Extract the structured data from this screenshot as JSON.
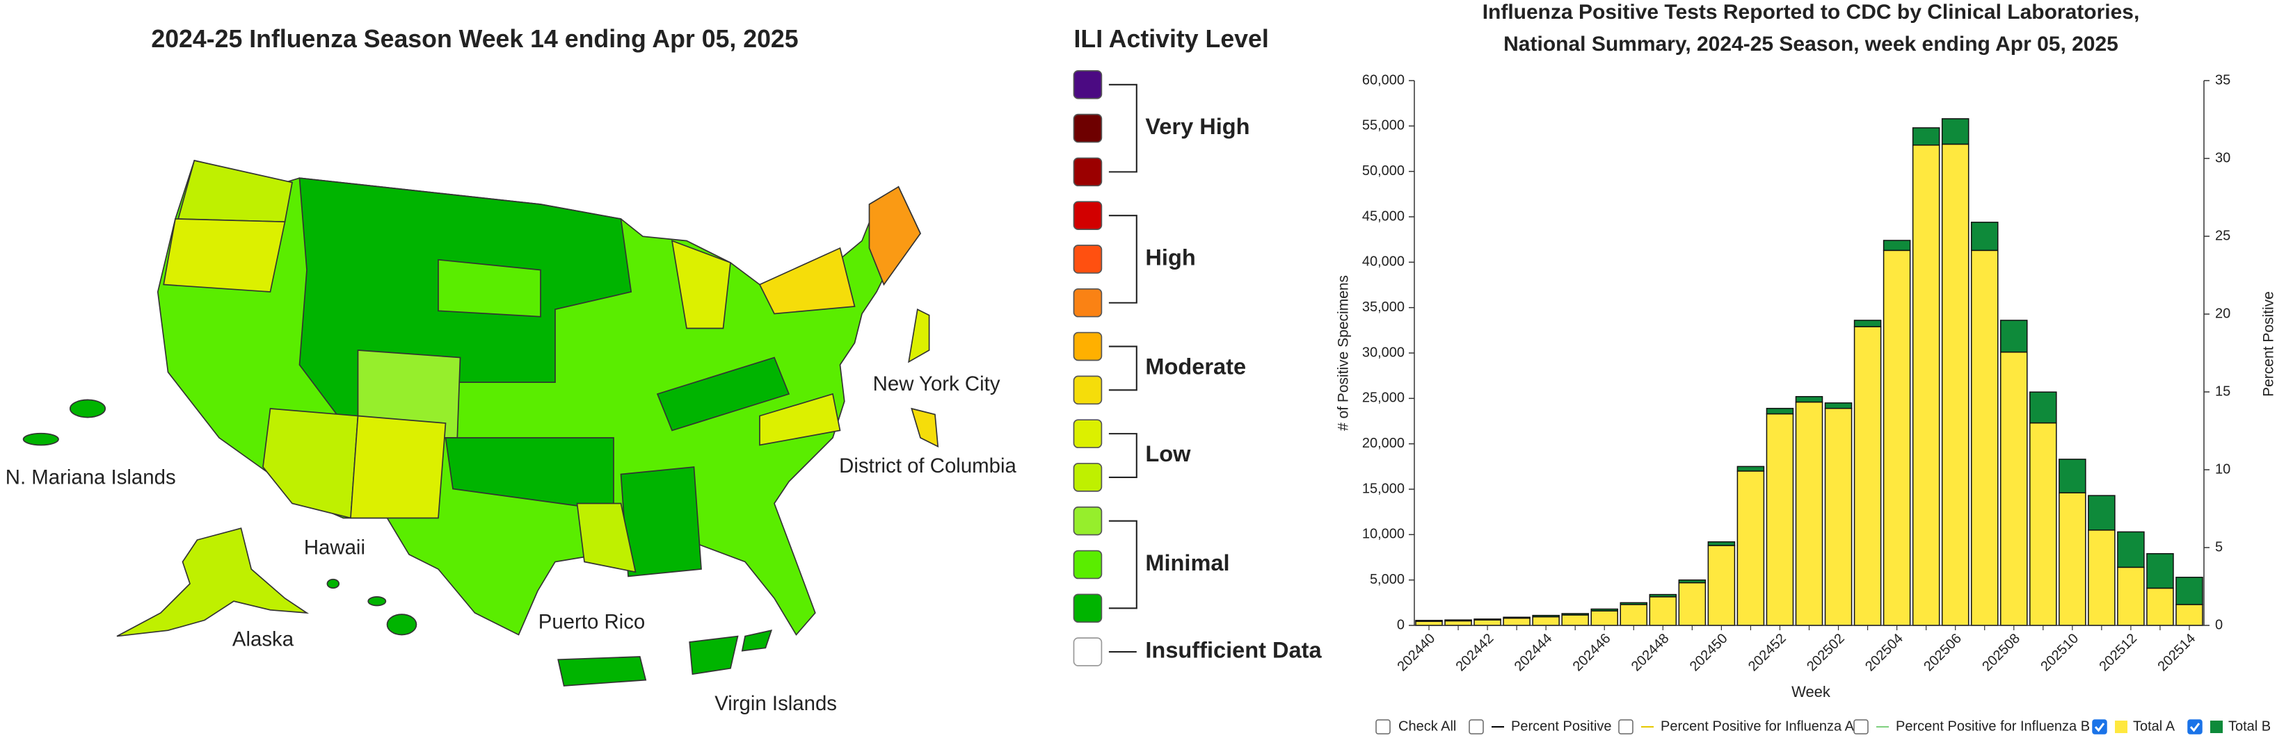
{
  "map": {
    "title": "2024-25 Influenza Season Week 14 ending Apr 05, 2025",
    "labels": [
      "N. Mariana Islands",
      "Hawaii",
      "Alaska",
      "Puerto Rico",
      "Virgin Islands",
      "New York City",
      "District of Columbia"
    ]
  },
  "ili_legend": {
    "title": "ILI Activity Level",
    "groups": [
      {
        "label": "Very High",
        "colors": [
          "#4b0a82",
          "#6e0000",
          "#9b0000"
        ]
      },
      {
        "label": "High",
        "colors": [
          "#d20000",
          "#ff5010",
          "#fa8214"
        ]
      },
      {
        "label": "Moderate",
        "colors": [
          "#ffb000",
          "#f5dd0a"
        ]
      },
      {
        "label": "Low",
        "colors": [
          "#dcf000",
          "#bff000"
        ]
      },
      {
        "label": "Minimal",
        "colors": [
          "#96ee2c",
          "#5aed00",
          "#00b400"
        ]
      },
      {
        "label": "Insufficient Data",
        "colors": [
          "#ffffff"
        ]
      }
    ]
  },
  "chart_data": {
    "type": "stacked_bar",
    "title": "Influenza Positive Tests Reported to CDC by Clinical Laboratories,",
    "subtitle": "National Summary, 2024-25 Season, week ending Apr 05, 2025",
    "x_label": "Week",
    "y_label": "# of Positive Specimens",
    "y2_label": "Percent Positive",
    "categories": [
      "202440",
      null,
      "202442",
      null,
      "202444",
      null,
      "202446",
      null,
      "202448",
      null,
      "202450",
      null,
      "202452",
      null,
      "202502",
      null,
      "202504",
      null,
      "202506",
      null,
      "202508",
      null,
      "202510",
      null,
      "202512",
      null,
      "202514"
    ],
    "series": [
      {
        "name": "Total A",
        "color": "#ffe83f",
        "checked": true,
        "values": [
          450,
          500,
          600,
          800,
          950,
          1150,
          1600,
          2300,
          3150,
          4700,
          8800,
          17000,
          23300,
          24600,
          23900,
          32900,
          41300,
          52900,
          53000,
          41300,
          30100,
          22300,
          14600,
          10500,
          6400,
          4100,
          2300
        ]
      },
      {
        "name": "Total B",
        "color": "#0e8a3a",
        "checked": true,
        "values": [
          100,
          100,
          100,
          100,
          150,
          150,
          200,
          200,
          250,
          300,
          400,
          500,
          600,
          600,
          600,
          700,
          1100,
          1900,
          2800,
          3100,
          3500,
          3400,
          3700,
          3800,
          3900,
          3800,
          3000
        ]
      }
    ],
    "controls": [
      {
        "label": "Check All",
        "checked": false
      },
      {
        "label": "Percent Positive",
        "checked": false,
        "color": "#000000"
      },
      {
        "label": "Percent Positive for Influenza A",
        "checked": false,
        "color": "#e6c800"
      },
      {
        "label": "Percent Positive for Influenza B",
        "checked": false,
        "color": "#7fd07f"
      }
    ],
    "ylim": [
      0,
      60000
    ],
    "yticks": [
      0,
      {
        "value": 5000,
        "label": "5,000"
      },
      {
        "value": 10000,
        "label": "10,000"
      },
      {
        "value": 15000,
        "label": "15,000"
      },
      {
        "value": 20000,
        "label": "20,000"
      },
      {
        "value": 25000,
        "label": "25,000"
      },
      {
        "value": 30000,
        "label": "30,000"
      },
      {
        "value": 35000,
        "label": "35,000"
      },
      {
        "value": 40000,
        "label": "40,000"
      },
      {
        "value": 45000,
        "label": "45,000"
      },
      {
        "value": 50000,
        "label": "50,000"
      },
      {
        "value": 55000,
        "label": "55,000"
      },
      {
        "value": 60000,
        "label": "60,000"
      }
    ],
    "y2lim": [
      0,
      35
    ],
    "y2ticks": [
      0,
      5,
      10,
      15,
      20,
      25,
      30,
      35
    ]
  }
}
